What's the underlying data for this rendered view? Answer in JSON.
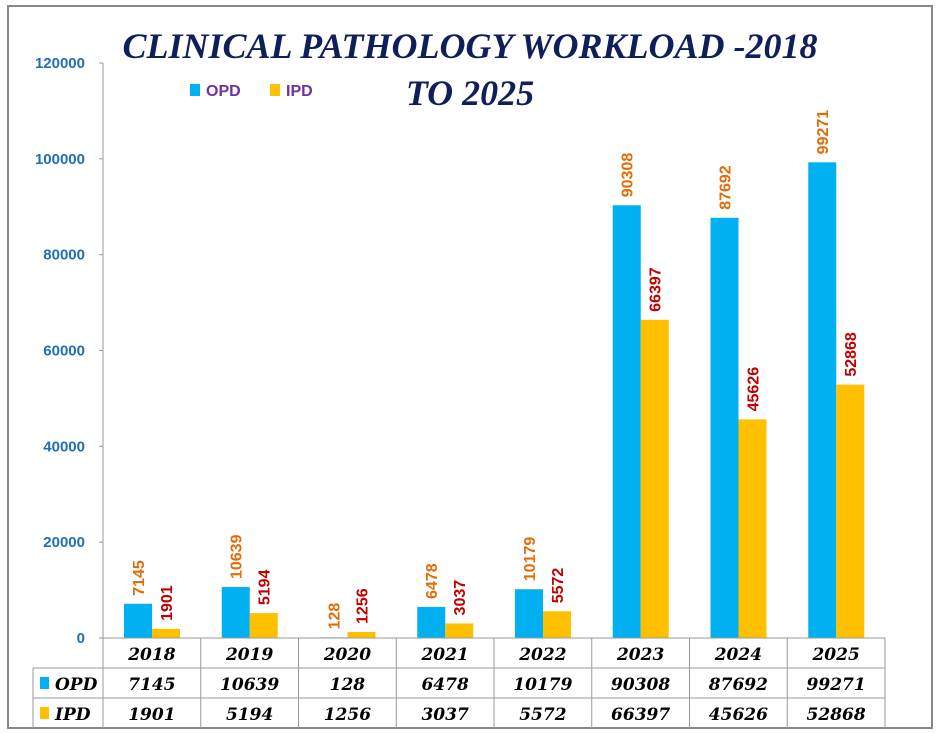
{
  "chart_data": {
    "type": "bar",
    "title": "CLINICAL PATHOLOGY WORKLOAD -2018 TO 2025",
    "title_lines": [
      "CLINICAL PATHOLOGY WORKLOAD -2018",
      "TO 2025"
    ],
    "categories": [
      "2018",
      "2019",
      "2020",
      "2021",
      "2022",
      "2023",
      "2024",
      "2025"
    ],
    "series": [
      {
        "name": "OPD",
        "color": "#00b0f0",
        "label_color": "#e36c09",
        "values": [
          7145,
          10639,
          128,
          6478,
          10179,
          90308,
          87692,
          99271
        ]
      },
      {
        "name": "IPD",
        "color": "#ffc000",
        "label_color": "#c00000",
        "values": [
          1901,
          5194,
          1256,
          3037,
          5572,
          66397,
          45626,
          52868
        ]
      }
    ],
    "ylim": [
      0,
      120000
    ],
    "yticks": [
      "0",
      "20000",
      "40000",
      "60000",
      "80000",
      "100000",
      "120000"
    ],
    "legend": "top",
    "data_table": true,
    "grid": false,
    "xlabel": "",
    "ylabel": ""
  }
}
